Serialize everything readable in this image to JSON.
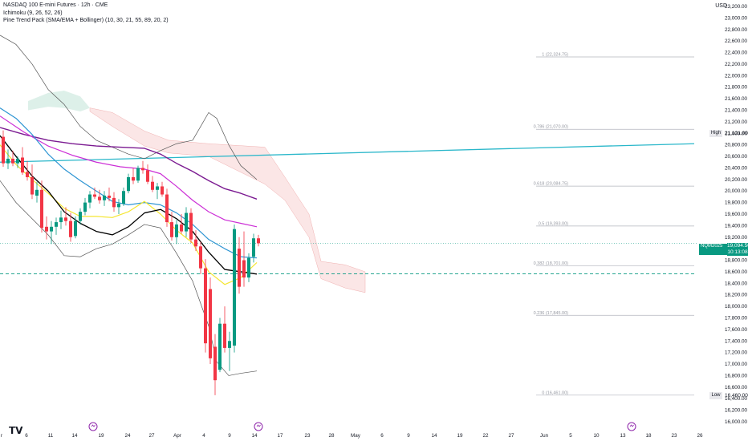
{
  "legend": {
    "title": "NASDAQ 100 E-mini Futures · 12h · CME",
    "ichimoku": "Ichimoku (9, 26, 52, 26)",
    "pine": "Pine Trend Pack (SMA/EMA + Bollinger) (10, 30, 21, 55, 89, 20, 2)"
  },
  "currency": "USD",
  "price_axis_ticks": [
    "23,200.00",
    "23,000.00",
    "22,800.00",
    "22,600.00",
    "22,400.00",
    "22,200.00",
    "22,000.00",
    "21,800.00",
    "21,600.00",
    "21,400.00",
    "21,200.00",
    "21,000.00",
    "20,800.00",
    "20,600.00",
    "20,400.00",
    "20,200.00",
    "20,000.00",
    "19,800.00",
    "19,600.00",
    "19,400.00",
    "19,200.00",
    "19,000.00",
    "18,800.00",
    "18,600.00",
    "18,400.00",
    "18,200.00",
    "18,000.00",
    "17,800.00",
    "17,600.00",
    "17,400.00",
    "17,200.00",
    "17,000.00",
    "16,800.00",
    "16,600.00",
    "16,400.00",
    "16,200.00",
    "16,000.00"
  ],
  "time_axis_ticks": [
    "r",
    "6",
    "11",
    "14",
    "19",
    "24",
    "27",
    "Apr",
    "4",
    "9",
    "14",
    "17",
    "23",
    "28",
    "May",
    "6",
    "9",
    "14",
    "19",
    "22",
    "27",
    "Jun",
    "5",
    "10",
    "13",
    "18",
    "23",
    "26"
  ],
  "symbol_badge": "NQM2025",
  "current_price": "19,094.50",
  "countdown": "10:13:08",
  "high_label": "High",
  "high_value": "21,121.00",
  "low_label": "Low",
  "low_value": "16,460.00",
  "fib_levels": [
    {
      "label": "1 (22,324.75)",
      "value": 22324.75
    },
    {
      "label": "0.786 (21,070.00)",
      "value": 21070.0
    },
    {
      "label": "0.618 (20,084.75)",
      "value": 20084.75
    },
    {
      "label": "0.5 (19,393.00)",
      "value": 19393.0
    },
    {
      "label": "0.382 (18,701.00)",
      "value": 18701.0
    },
    {
      "label": "0.236 (17,845.00)",
      "value": 17845.0
    },
    {
      "label": "0 (16,461.00)",
      "value": 16461.0
    }
  ],
  "colors": {
    "up": "#089981",
    "down": "#f23645",
    "ema_fast": "#f5e632",
    "sma": "#000000",
    "ema_blue": "#2e95d3",
    "ema_magenta": "#cc2fd6",
    "ema_purple": "#7b1a91",
    "bollinger": "#555555",
    "kumo_bear": "#f9d6d6",
    "kumo_bull": "#cfe9df",
    "trendline": "#2ab7ca",
    "fib": "#b2b5be"
  },
  "chart_data": {
    "type": "candlestick",
    "y_range": [
      16000,
      23200
    ],
    "trendline": {
      "start": 20500,
      "end": 20820
    },
    "dashed_level": 18565,
    "current_price_level": 19094.5,
    "candles": [
      {
        "x": 4,
        "o": 20940,
        "h": 21050,
        "l": 20420,
        "c": 20480
      },
      {
        "x": 10,
        "o": 20480,
        "h": 20720,
        "l": 20380,
        "c": 20560
      },
      {
        "x": 16,
        "o": 20560,
        "h": 20700,
        "l": 20430,
        "c": 20480
      },
      {
        "x": 22,
        "o": 20480,
        "h": 20600,
        "l": 20400,
        "c": 20560
      },
      {
        "x": 28,
        "o": 20580,
        "h": 20760,
        "l": 20280,
        "c": 20320
      },
      {
        "x": 34,
        "o": 20330,
        "h": 20520,
        "l": 20180,
        "c": 20240
      },
      {
        "x": 40,
        "o": 20240,
        "h": 20460,
        "l": 19860,
        "c": 19940
      },
      {
        "x": 46,
        "o": 19920,
        "h": 20160,
        "l": 19800,
        "c": 20020
      },
      {
        "x": 52,
        "o": 20020,
        "h": 20180,
        "l": 19280,
        "c": 19360
      },
      {
        "x": 58,
        "o": 19380,
        "h": 19560,
        "l": 19160,
        "c": 19300
      },
      {
        "x": 64,
        "o": 19300,
        "h": 19480,
        "l": 19080,
        "c": 19380
      },
      {
        "x": 70,
        "o": 19380,
        "h": 19540,
        "l": 19240,
        "c": 19460
      },
      {
        "x": 76,
        "o": 19460,
        "h": 19660,
        "l": 19340,
        "c": 19540
      },
      {
        "x": 82,
        "o": 19540,
        "h": 19720,
        "l": 19400,
        "c": 19480
      },
      {
        "x": 88,
        "o": 19480,
        "h": 19620,
        "l": 19120,
        "c": 19200
      },
      {
        "x": 94,
        "o": 19220,
        "h": 19560,
        "l": 19180,
        "c": 19480
      },
      {
        "x": 100,
        "o": 19480,
        "h": 19700,
        "l": 19420,
        "c": 19640
      },
      {
        "x": 106,
        "o": 19640,
        "h": 19880,
        "l": 19580,
        "c": 19800
      },
      {
        "x": 112,
        "o": 19800,
        "h": 20000,
        "l": 19700,
        "c": 19940
      },
      {
        "x": 118,
        "o": 19940,
        "h": 20060,
        "l": 19860,
        "c": 19900
      },
      {
        "x": 124,
        "o": 19900,
        "h": 20020,
        "l": 19780,
        "c": 19840
      },
      {
        "x": 130,
        "o": 19840,
        "h": 20000,
        "l": 19740,
        "c": 19920
      },
      {
        "x": 136,
        "o": 19920,
        "h": 20060,
        "l": 19820,
        "c": 19880
      },
      {
        "x": 142,
        "o": 19880,
        "h": 19980,
        "l": 19640,
        "c": 19720
      },
      {
        "x": 148,
        "o": 19720,
        "h": 19860,
        "l": 19600,
        "c": 19780
      },
      {
        "x": 154,
        "o": 19780,
        "h": 20060,
        "l": 19740,
        "c": 20000
      },
      {
        "x": 160,
        "o": 20000,
        "h": 20300,
        "l": 19960,
        "c": 20240
      },
      {
        "x": 166,
        "o": 20240,
        "h": 20400,
        "l": 20120,
        "c": 20180
      },
      {
        "x": 172,
        "o": 20180,
        "h": 20440,
        "l": 20140,
        "c": 20400
      },
      {
        "x": 178,
        "o": 20400,
        "h": 20520,
        "l": 20300,
        "c": 20360
      },
      {
        "x": 184,
        "o": 20360,
        "h": 20460,
        "l": 20120,
        "c": 20160
      },
      {
        "x": 190,
        "o": 20160,
        "h": 20260,
        "l": 19980,
        "c": 20020
      },
      {
        "x": 196,
        "o": 20020,
        "h": 20140,
        "l": 19860,
        "c": 20080
      },
      {
        "x": 202,
        "o": 20080,
        "h": 20160,
        "l": 19900,
        "c": 19940
      },
      {
        "x": 208,
        "o": 19940,
        "h": 20040,
        "l": 19380,
        "c": 19460
      },
      {
        "x": 214,
        "o": 19460,
        "h": 19640,
        "l": 19140,
        "c": 19200
      },
      {
        "x": 220,
        "o": 19200,
        "h": 19500,
        "l": 19080,
        "c": 19420
      },
      {
        "x": 226,
        "o": 19420,
        "h": 19600,
        "l": 19260,
        "c": 19300
      },
      {
        "x": 232,
        "o": 19300,
        "h": 19720,
        "l": 19200,
        "c": 19620
      },
      {
        "x": 238,
        "o": 19620,
        "h": 19700,
        "l": 19100,
        "c": 19160
      },
      {
        "x": 244,
        "o": 19160,
        "h": 19320,
        "l": 18960,
        "c": 19040
      },
      {
        "x": 250,
        "o": 19040,
        "h": 19120,
        "l": 18560,
        "c": 18660
      },
      {
        "x": 256,
        "o": 18660,
        "h": 18820,
        "l": 17200,
        "c": 17360
      },
      {
        "x": 262,
        "o": 18300,
        "h": 18500,
        "l": 17000,
        "c": 17100
      },
      {
        "x": 268,
        "o": 17300,
        "h": 17520,
        "l": 16460,
        "c": 16720
      },
      {
        "x": 274,
        "o": 16900,
        "h": 17800,
        "l": 16860,
        "c": 17700
      },
      {
        "x": 280,
        "o": 17700,
        "h": 18000,
        "l": 17200,
        "c": 17280
      },
      {
        "x": 286,
        "o": 17280,
        "h": 17560,
        "l": 16880,
        "c": 17400
      },
      {
        "x": 292,
        "o": 17320,
        "h": 19420,
        "l": 17200,
        "c": 19340
      },
      {
        "x": 298,
        "o": 19000,
        "h": 19200,
        "l": 18220,
        "c": 18340
      },
      {
        "x": 304,
        "o": 18800,
        "h": 19300,
        "l": 18340,
        "c": 18500
      },
      {
        "x": 310,
        "o": 18500,
        "h": 18920,
        "l": 18420,
        "c": 18840
      },
      {
        "x": 316,
        "o": 18860,
        "h": 19260,
        "l": 18760,
        "c": 19180
      },
      {
        "x": 322,
        "o": 19180,
        "h": 19240,
        "l": 19040,
        "c": 19094
      }
    ],
    "sma": [
      [
        0,
        20960
      ],
      [
        20,
        20600
      ],
      [
        40,
        20260
      ],
      [
        60,
        20000
      ],
      [
        80,
        19640
      ],
      [
        100,
        19440
      ],
      [
        120,
        19300
      ],
      [
        140,
        19240
      ],
      [
        160,
        19380
      ],
      [
        180,
        19620
      ],
      [
        200,
        19680
      ],
      [
        220,
        19520
      ],
      [
        240,
        19300
      ],
      [
        260,
        18940
      ],
      [
        280,
        18640
      ],
      [
        300,
        18600
      ],
      [
        320,
        18560
      ]
    ],
    "ema_fast": [
      [
        0,
        20800
      ],
      [
        20,
        20460
      ],
      [
        40,
        20200
      ],
      [
        60,
        19960
      ],
      [
        80,
        19700
      ],
      [
        100,
        19560
      ],
      [
        120,
        19560
      ],
      [
        140,
        19540
      ],
      [
        160,
        19640
      ],
      [
        180,
        19820
      ],
      [
        200,
        19600
      ],
      [
        220,
        19320
      ],
      [
        240,
        19100
      ],
      [
        260,
        18600
      ],
      [
        280,
        18380
      ],
      [
        300,
        18500
      ],
      [
        320,
        18760
      ]
    ],
    "ema_blue": [
      [
        0,
        21440
      ],
      [
        20,
        21260
      ],
      [
        40,
        20980
      ],
      [
        60,
        20640
      ],
      [
        80,
        20380
      ],
      [
        100,
        20180
      ],
      [
        120,
        20000
      ],
      [
        140,
        19820
      ],
      [
        160,
        19760
      ],
      [
        180,
        19800
      ],
      [
        200,
        19760
      ],
      [
        220,
        19620
      ],
      [
        240,
        19420
      ],
      [
        260,
        19160
      ],
      [
        280,
        19000
      ],
      [
        300,
        18860
      ],
      [
        320,
        18840
      ]
    ],
    "ema_magenta": [
      [
        0,
        21300
      ],
      [
        30,
        21020
      ],
      [
        60,
        20780
      ],
      [
        90,
        20620
      ],
      [
        120,
        20500
      ],
      [
        150,
        20420
      ],
      [
        180,
        20380
      ],
      [
        200,
        20300
      ],
      [
        220,
        20080
      ],
      [
        240,
        19840
      ],
      [
        260,
        19640
      ],
      [
        280,
        19500
      ],
      [
        300,
        19440
      ],
      [
        320,
        19380
      ]
    ],
    "ema_purple": [
      [
        0,
        21100
      ],
      [
        30,
        20980
      ],
      [
        60,
        20880
      ],
      [
        90,
        20820
      ],
      [
        120,
        20780
      ],
      [
        150,
        20760
      ],
      [
        180,
        20740
      ],
      [
        200,
        20640
      ],
      [
        220,
        20480
      ],
      [
        240,
        20340
      ],
      [
        260,
        20180
      ],
      [
        280,
        20040
      ],
      [
        300,
        19960
      ],
      [
        320,
        19860
      ]
    ],
    "bb_upper": [
      [
        0,
        22700
      ],
      [
        20,
        22540
      ],
      [
        40,
        22200
      ],
      [
        60,
        21760
      ],
      [
        80,
        21500
      ],
      [
        100,
        21120
      ],
      [
        120,
        20880
      ],
      [
        140,
        20760
      ],
      [
        160,
        20640
      ],
      [
        180,
        20560
      ],
      [
        200,
        20700
      ],
      [
        220,
        20820
      ],
      [
        240,
        20880
      ],
      [
        250,
        21120
      ],
      [
        260,
        21360
      ],
      [
        270,
        21260
      ],
      [
        285,
        20800
      ],
      [
        300,
        20440
      ],
      [
        320,
        20200
      ]
    ],
    "bb_lower": [
      [
        0,
        20180
      ],
      [
        20,
        19800
      ],
      [
        40,
        19520
      ],
      [
        60,
        19240
      ],
      [
        80,
        18880
      ],
      [
        100,
        18860
      ],
      [
        120,
        19000
      ],
      [
        140,
        19080
      ],
      [
        160,
        19240
      ],
      [
        180,
        19420
      ],
      [
        200,
        19360
      ],
      [
        220,
        18920
      ],
      [
        240,
        18440
      ],
      [
        260,
        17660
      ],
      [
        270,
        17040
      ],
      [
        285,
        16800
      ],
      [
        300,
        16840
      ],
      [
        320,
        16880
      ]
    ],
    "kumo_bull_upper": [
      [
        35,
        21560
      ],
      [
        60,
        21700
      ],
      [
        80,
        21740
      ],
      [
        100,
        21640
      ],
      [
        112,
        21440
      ]
    ],
    "kumo_bull_lower": [
      [
        35,
        21400
      ],
      [
        60,
        21460
      ],
      [
        80,
        21440
      ],
      [
        100,
        21380
      ],
      [
        112,
        21440
      ]
    ],
    "kumo_bear_upper": [
      [
        112,
        21440
      ],
      [
        140,
        21360
      ],
      [
        180,
        21040
      ],
      [
        210,
        20880
      ],
      [
        260,
        20820
      ],
      [
        330,
        20760
      ],
      [
        355,
        20240
      ],
      [
        385,
        19600
      ],
      [
        400,
        18780
      ],
      [
        430,
        18720
      ],
      [
        455,
        18600
      ]
    ],
    "kumo_bear_lower": [
      [
        112,
        21380
      ],
      [
        140,
        21120
      ],
      [
        180,
        20780
      ],
      [
        210,
        20660
      ],
      [
        260,
        20600
      ],
      [
        330,
        20120
      ],
      [
        355,
        19840
      ],
      [
        385,
        19200
      ],
      [
        400,
        18480
      ],
      [
        430,
        18320
      ],
      [
        455,
        18240
      ]
    ]
  }
}
